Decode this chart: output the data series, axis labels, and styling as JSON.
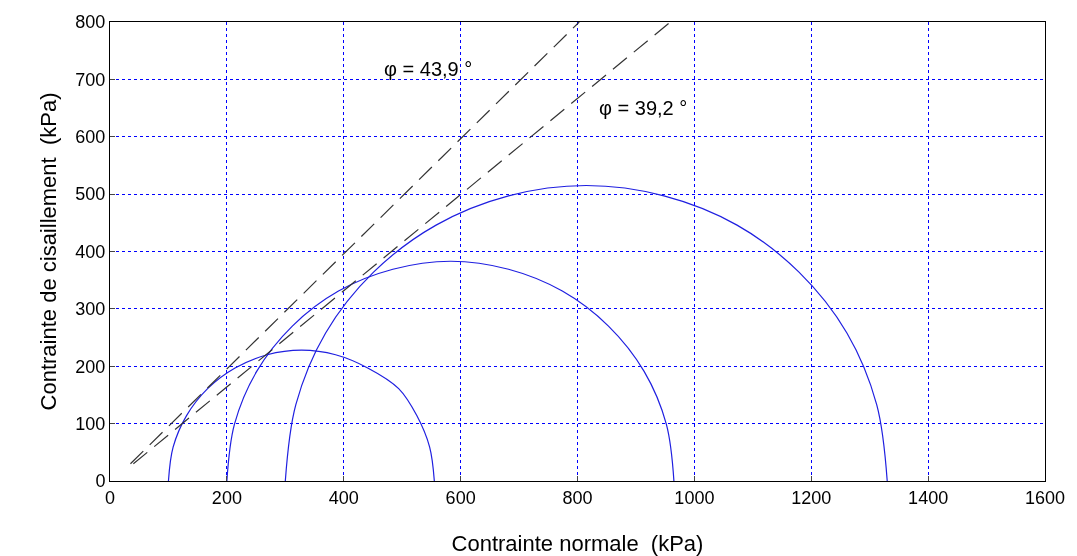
{
  "chart_data": {
    "type": "line",
    "xlabel": "Contrainte normale  (kPa)",
    "ylabel": "Contrainte de cisaillement  (kPa)",
    "xlim": [
      0,
      1600
    ],
    "xticks": [
      0,
      200,
      400,
      600,
      800,
      1000,
      1200,
      1400,
      1600
    ],
    "ylim": [
      0,
      800
    ],
    "yticks": [
      0,
      100,
      200,
      300,
      400,
      500,
      600,
      700,
      800
    ],
    "grid": true,
    "marker": "none",
    "series": [
      {
        "color": "#1f1fe0",
        "line_style": "solid",
        "x": [
          100,
          108,
          131,
          167,
          214,
          269,
          328,
          386,
          441,
          494,
          525,
          547,
          555
        ],
        "values": [
          0,
          59,
          114,
          161,
          197,
          220,
          228,
          220,
          197,
          161,
          114,
          59,
          0
        ]
      },
      {
        "color": "#1f1fe0",
        "line_style": "solid",
        "x": [
          200,
          213,
          251,
          312,
          391,
          484,
          583,
          682,
          774,
          853,
          914,
          952,
          965
        ],
        "values": [
          0,
          99,
          191,
          270,
          331,
          369,
          383,
          369,
          331,
          270,
          191,
          99,
          0
        ]
      },
      {
        "color": "#1f1fe0",
        "line_style": "solid",
        "x": [
          300,
          318,
          369,
          451,
          558,
          682,
          815,
          948,
          1073,
          1179,
          1261,
          1312,
          1330
        ],
        "values": [
          0,
          133,
          258,
          364,
          446,
          497,
          515,
          497,
          446,
          364,
          258,
          133,
          0
        ]
      },
      {
        "color": "#333333",
        "line_style": "dashed",
        "x": [
          35,
          803
        ],
        "values": [
          30,
          800
        ]
      },
      {
        "color": "#333333",
        "line_style": "dashed",
        "x": [
          40,
          959
        ],
        "values": [
          30,
          800
        ]
      }
    ],
    "annotations": [
      "φ = 43,9 °",
      "φ = 39,2 °"
    ]
  }
}
